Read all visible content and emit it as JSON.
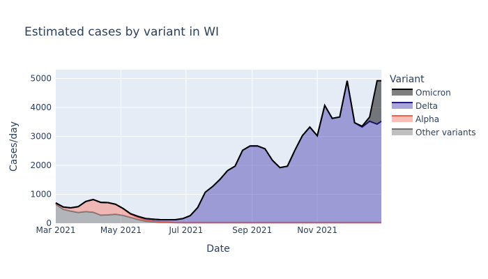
{
  "chart_data": {
    "type": "area",
    "stacked": true,
    "title": "Estimated cases by variant in WI",
    "xlabel": "Date",
    "ylabel": "Cases/day",
    "xlim": [
      "2021-03-01",
      "2021-12-31"
    ],
    "ylim": [
      0,
      5300
    ],
    "xticks": [
      {
        "date": "2021-03-01",
        "label": "Mar 2021"
      },
      {
        "date": "2021-05-01",
        "label": "May 2021"
      },
      {
        "date": "2021-07-01",
        "label": "Jul 2021"
      },
      {
        "date": "2021-09-01",
        "label": "Sep 2021"
      },
      {
        "date": "2021-11-01",
        "label": "Nov 2021"
      }
    ],
    "yticks": [
      0,
      1000,
      2000,
      3000,
      4000,
      5000
    ],
    "ytick_labels": [
      "0",
      "1000",
      "2000",
      "3000",
      "4000",
      "5000"
    ],
    "grid": true,
    "legend_title": "Variant",
    "legend_placement": "right",
    "plot_bg": "#e5ecf6",
    "series": [
      {
        "name": "Omicron",
        "line_color": "#000000",
        "fill_color": "rgba(0,0,0,0.5)"
      },
      {
        "name": "Delta",
        "line_color": "#1f1a8c",
        "fill_color": "rgba(99,90,185,0.55)"
      },
      {
        "name": "Alpha",
        "line_color": "#f0604a",
        "fill_color": "rgba(250,128,114,0.5)"
      },
      {
        "name": "Other variants",
        "line_color": "#707070",
        "fill_color": "rgba(128,128,128,0.5)"
      }
    ],
    "dates": [
      "2021-03-01",
      "2021-03-08",
      "2021-03-15",
      "2021-03-22",
      "2021-03-29",
      "2021-04-05",
      "2021-04-12",
      "2021-04-19",
      "2021-04-26",
      "2021-05-03",
      "2021-05-10",
      "2021-05-17",
      "2021-05-24",
      "2021-05-31",
      "2021-06-07",
      "2021-06-14",
      "2021-06-21",
      "2021-06-28",
      "2021-07-05",
      "2021-07-12",
      "2021-07-19",
      "2021-07-26",
      "2021-08-02",
      "2021-08-09",
      "2021-08-16",
      "2021-08-23",
      "2021-08-30",
      "2021-09-06",
      "2021-09-13",
      "2021-09-20",
      "2021-09-27",
      "2021-10-04",
      "2021-10-11",
      "2021-10-18",
      "2021-10-25",
      "2021-11-01",
      "2021-11-08",
      "2021-11-15",
      "2021-11-22",
      "2021-11-29",
      "2021-12-06",
      "2021-12-13",
      "2021-12-20",
      "2021-12-27",
      "2021-12-31"
    ],
    "omicron": [
      0,
      0,
      0,
      0,
      0,
      0,
      0,
      0,
      0,
      0,
      0,
      0,
      0,
      0,
      0,
      0,
      0,
      0,
      0,
      0,
      0,
      0,
      0,
      0,
      0,
      0,
      0,
      0,
      0,
      0,
      0,
      0,
      0,
      0,
      0,
      0,
      0,
      0,
      0,
      0,
      0,
      30,
      150,
      1500,
      1400
    ],
    "delta": [
      0,
      0,
      0,
      0,
      0,
      0,
      0,
      0,
      5,
      10,
      20,
      35,
      50,
      65,
      75,
      80,
      95,
      140,
      240,
      520,
      1050,
      1250,
      1500,
      1800,
      1950,
      2500,
      2650,
      2650,
      2550,
      2150,
      1900,
      1950,
      2500,
      3000,
      3300,
      3000,
      4050,
      3600,
      3650,
      4900,
      3450,
      3300,
      3500,
      3400,
      3500
    ],
    "alpha": [
      50,
      80,
      110,
      200,
      350,
      440,
      440,
      420,
      340,
      230,
      110,
      70,
      45,
      25,
      15,
      10,
      5,
      0,
      0,
      0,
      0,
      0,
      0,
      0,
      0,
      0,
      0,
      0,
      0,
      0,
      0,
      0,
      0,
      0,
      0,
      0,
      0,
      0,
      0,
      0,
      0,
      0,
      0,
      0,
      0
    ],
    "other": [
      650,
      480,
      420,
      370,
      400,
      380,
      280,
      290,
      310,
      270,
      200,
      130,
      70,
      50,
      30,
      30,
      20,
      20,
      20,
      20,
      20,
      20,
      20,
      20,
      20,
      20,
      20,
      20,
      20,
      20,
      20,
      20,
      20,
      20,
      20,
      20,
      20,
      20,
      20,
      20,
      20,
      20,
      20,
      20,
      20
    ]
  }
}
